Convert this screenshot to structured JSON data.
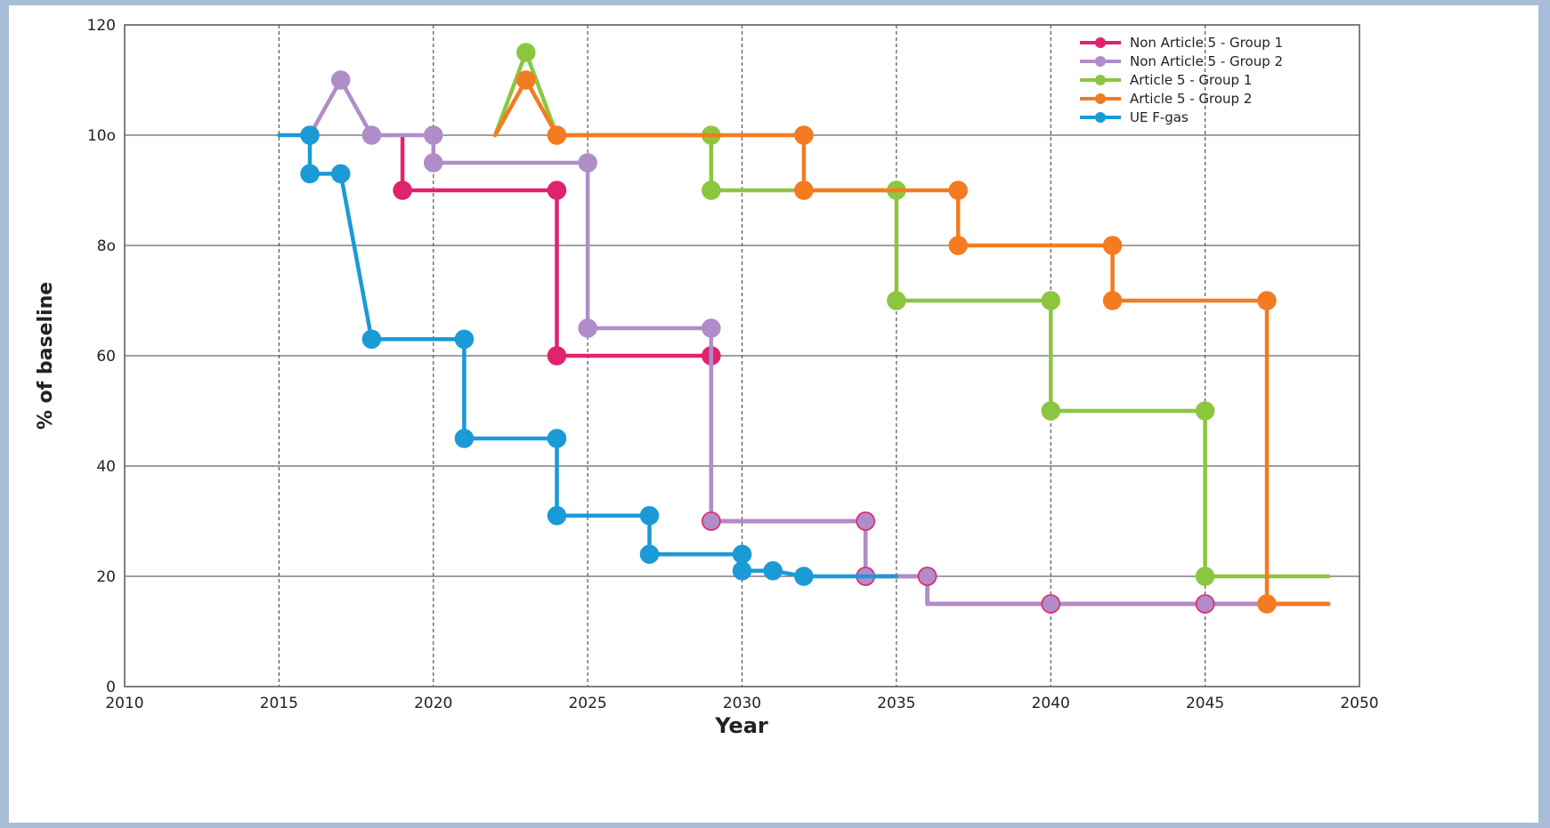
{
  "chart_data": {
    "type": "line",
    "title": "",
    "xlabel": "Year",
    "ylabel": "% of baseline",
    "xlim": [
      2010,
      2050
    ],
    "ylim": [
      0,
      120
    ],
    "x_ticks": [
      2010,
      2015,
      2020,
      2025,
      2030,
      2035,
      2040,
      2045,
      2050
    ],
    "y_ticks": [
      0,
      20,
      40,
      60,
      80,
      100,
      120
    ],
    "y_tick_labels": [
      "0",
      "20",
      "40",
      "60",
      "8o",
      "10o",
      "120"
    ],
    "grid": {
      "horizontal": "solid",
      "vertical": "dashed"
    },
    "legend_position": "top-right",
    "series": [
      {
        "name": "Non Article 5 - Group 1",
        "color": "#e0236e",
        "points": [
          [
            2019,
            100
          ],
          [
            2019,
            90
          ],
          [
            2024,
            90
          ],
          [
            2024,
            60
          ],
          [
            2029,
            60
          ],
          [
            2029,
            30
          ],
          [
            2034,
            30
          ],
          [
            2034,
            20
          ],
          [
            2036,
            20
          ],
          [
            2036,
            15
          ],
          [
            2040,
            15
          ],
          [
            2045,
            15
          ],
          [
            2049,
            15
          ]
        ],
        "markers": [
          [
            2019,
            90
          ],
          [
            2024,
            90
          ],
          [
            2024,
            60
          ],
          [
            2029,
            60
          ],
          [
            2029,
            30
          ],
          [
            2034,
            30
          ],
          [
            2034,
            20
          ],
          [
            2036,
            20
          ],
          [
            2040,
            15
          ],
          [
            2045,
            15
          ]
        ]
      },
      {
        "name": "Non Article 5 - Group 2",
        "color": "#b08cc8",
        "points": [
          [
            2016,
            100
          ],
          [
            2017,
            110
          ],
          [
            2018,
            100
          ],
          [
            2020,
            100
          ],
          [
            2020,
            95
          ],
          [
            2025,
            95
          ],
          [
            2025,
            65
          ],
          [
            2029,
            65
          ],
          [
            2029,
            30
          ],
          [
            2034,
            30
          ],
          [
            2034,
            20
          ],
          [
            2036,
            20
          ],
          [
            2036,
            15
          ],
          [
            2040,
            15
          ],
          [
            2045,
            15
          ],
          [
            2049,
            15
          ]
        ],
        "markers": [
          [
            2017,
            110
          ],
          [
            2018,
            100
          ],
          [
            2020,
            100
          ],
          [
            2020,
            95
          ],
          [
            2025,
            95
          ],
          [
            2025,
            65
          ],
          [
            2029,
            65
          ],
          [
            2029,
            30
          ],
          [
            2034,
            30
          ],
          [
            2034,
            20
          ],
          [
            2036,
            20
          ],
          [
            2040,
            15
          ],
          [
            2045,
            15
          ]
        ]
      },
      {
        "name": "Article 5 - Group 1",
        "color": "#8cc63f",
        "points": [
          [
            2022,
            100
          ],
          [
            2023,
            115
          ],
          [
            2024,
            100
          ],
          [
            2029,
            100
          ],
          [
            2029,
            90
          ],
          [
            2035,
            90
          ],
          [
            2035,
            70
          ],
          [
            2040,
            70
          ],
          [
            2040,
            50
          ],
          [
            2045,
            50
          ],
          [
            2045,
            20
          ],
          [
            2049,
            20
          ]
        ],
        "markers": [
          [
            2023,
            115
          ],
          [
            2024,
            100
          ],
          [
            2029,
            100
          ],
          [
            2029,
            90
          ],
          [
            2035,
            90
          ],
          [
            2035,
            70
          ],
          [
            2040,
            70
          ],
          [
            2040,
            50
          ],
          [
            2045,
            50
          ],
          [
            2045,
            20
          ]
        ]
      },
      {
        "name": "Article 5 - Group 2",
        "color": "#f47b20",
        "points": [
          [
            2022,
            100
          ],
          [
            2023,
            110
          ],
          [
            2024,
            100
          ],
          [
            2032,
            100
          ],
          [
            2032,
            90
          ],
          [
            2037,
            90
          ],
          [
            2037,
            80
          ],
          [
            2042,
            80
          ],
          [
            2042,
            70
          ],
          [
            2047,
            70
          ],
          [
            2047,
            15
          ],
          [
            2049,
            15
          ]
        ],
        "markers": [
          [
            2023,
            110
          ],
          [
            2024,
            100
          ],
          [
            2032,
            100
          ],
          [
            2032,
            90
          ],
          [
            2037,
            90
          ],
          [
            2037,
            80
          ],
          [
            2042,
            80
          ],
          [
            2042,
            70
          ],
          [
            2047,
            70
          ],
          [
            2047,
            15
          ]
        ]
      },
      {
        "name": "UE F-gas",
        "color": "#1a9ad6",
        "points": [
          [
            2015,
            100
          ],
          [
            2016,
            100
          ],
          [
            2016,
            93
          ],
          [
            2017,
            93
          ],
          [
            2018,
            63
          ],
          [
            2021,
            63
          ],
          [
            2021,
            45
          ],
          [
            2024,
            45
          ],
          [
            2024,
            31
          ],
          [
            2027,
            31
          ],
          [
            2027,
            24
          ],
          [
            2030,
            24
          ],
          [
            2030,
            21
          ],
          [
            2031,
            21
          ],
          [
            2032,
            20
          ],
          [
            2035,
            20
          ]
        ],
        "markers": [
          [
            2016,
            100
          ],
          [
            2016,
            93
          ],
          [
            2017,
            93
          ],
          [
            2018,
            63
          ],
          [
            2021,
            63
          ],
          [
            2021,
            45
          ],
          [
            2024,
            45
          ],
          [
            2024,
            31
          ],
          [
            2027,
            31
          ],
          [
            2027,
            24
          ],
          [
            2030,
            24
          ],
          [
            2030,
            21
          ],
          [
            2031,
            21
          ],
          [
            2032,
            20
          ]
        ]
      }
    ]
  }
}
